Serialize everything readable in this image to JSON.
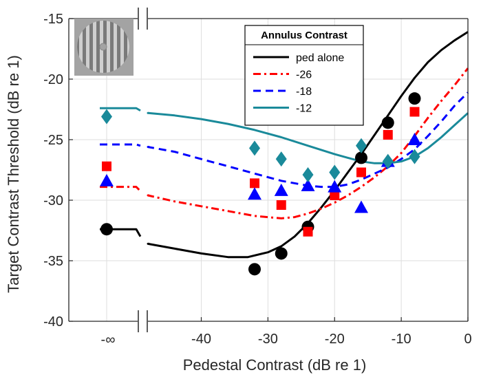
{
  "chart_data": {
    "type": "line",
    "xlabel": "Pedestal Contrast (dB re 1)",
    "ylabel": "Target Contrast Threshold (dB re 1)",
    "xlim": [
      -48,
      0
    ],
    "ylim": [
      -40,
      -15
    ],
    "x_ticks": [
      -40,
      -30,
      -20,
      -10,
      0
    ],
    "y_ticks": [
      -15,
      -20,
      -25,
      -30,
      -35,
      -40
    ],
    "neg_inf_label": "-∞",
    "grid": true,
    "legend": {
      "title": "Annulus Contrast",
      "placement": "top-right",
      "entries": [
        "ped alone",
        "-26",
        "-18",
        "-12"
      ]
    },
    "series": [
      {
        "name": "ped alone",
        "color": "#000000",
        "dash": "solid",
        "marker": "circle",
        "curve_inf": -32.4,
        "curve": [
          [
            -48,
            -33.6
          ],
          [
            -44,
            -34.0
          ],
          [
            -40,
            -34.4
          ],
          [
            -36,
            -34.7
          ],
          [
            -33,
            -34.7
          ],
          [
            -30,
            -34.3
          ],
          [
            -28,
            -33.8
          ],
          [
            -26,
            -33.0
          ],
          [
            -24,
            -31.9
          ],
          [
            -22,
            -30.6
          ],
          [
            -20,
            -29.2
          ],
          [
            -18,
            -27.7
          ],
          [
            -16,
            -26.2
          ],
          [
            -14,
            -24.6
          ],
          [
            -12,
            -23.0
          ],
          [
            -10,
            -21.4
          ],
          [
            -8,
            -19.9
          ],
          [
            -6,
            -18.6
          ],
          [
            -4,
            -17.6
          ],
          [
            -2,
            -16.8
          ],
          [
            0,
            -16.1
          ]
        ],
        "points_inf": [
          -32.4
        ],
        "points": [
          [
            -32,
            -35.7
          ],
          [
            -28,
            -34.4
          ],
          [
            -24,
            -32.2
          ],
          [
            -16,
            -26.5
          ],
          [
            -12,
            -23.6
          ],
          [
            -8,
            -21.6
          ]
        ]
      },
      {
        "name": "-26",
        "color": "#ff0000",
        "dash": "dashdot",
        "marker": "square",
        "curve_inf": -28.9,
        "curve": [
          [
            -48,
            -29.6
          ],
          [
            -44,
            -30.1
          ],
          [
            -40,
            -30.5
          ],
          [
            -36,
            -30.9
          ],
          [
            -32,
            -31.3
          ],
          [
            -28,
            -31.5
          ],
          [
            -26,
            -31.4
          ],
          [
            -24,
            -31.1
          ],
          [
            -22,
            -30.7
          ],
          [
            -20,
            -30.2
          ],
          [
            -18,
            -29.6
          ],
          [
            -16,
            -28.9
          ],
          [
            -14,
            -28.1
          ],
          [
            -12,
            -27.2
          ],
          [
            -10,
            -26.1
          ],
          [
            -8,
            -24.7
          ],
          [
            -6,
            -23.2
          ],
          [
            -4,
            -21.8
          ],
          [
            -2,
            -20.5
          ],
          [
            0,
            -19.1
          ]
        ],
        "points_inf": [
          -27.2
        ],
        "points": [
          [
            -32,
            -28.6
          ],
          [
            -28,
            -30.4
          ],
          [
            -24,
            -32.6
          ],
          [
            -20,
            -29.6
          ],
          [
            -16,
            -27.7
          ],
          [
            -12,
            -24.6
          ],
          [
            -8,
            -22.7
          ]
        ]
      },
      {
        "name": "-18",
        "color": "#0000ff",
        "dash": "dash",
        "marker": "triangle",
        "curve_inf": -25.4,
        "curve": [
          [
            -48,
            -25.6
          ],
          [
            -44,
            -26.0
          ],
          [
            -40,
            -26.6
          ],
          [
            -36,
            -27.2
          ],
          [
            -32,
            -27.8
          ],
          [
            -28,
            -28.4
          ],
          [
            -24,
            -28.8
          ],
          [
            -22,
            -28.9
          ],
          [
            -20,
            -28.9
          ],
          [
            -18,
            -28.7
          ],
          [
            -16,
            -28.3
          ],
          [
            -14,
            -27.8
          ],
          [
            -12,
            -27.3
          ],
          [
            -10,
            -26.6
          ],
          [
            -8,
            -25.8
          ],
          [
            -6,
            -24.7
          ],
          [
            -4,
            -23.5
          ],
          [
            -2,
            -22.2
          ],
          [
            0,
            -21.1
          ]
        ],
        "points_inf": [
          -28.4
        ],
        "points": [
          [
            -32,
            -29.5
          ],
          [
            -28,
            -29.2
          ],
          [
            -24,
            -28.8
          ],
          [
            -20,
            -28.9
          ],
          [
            -16,
            -30.6
          ],
          [
            -12,
            -26.8
          ],
          [
            -8,
            -25.0
          ]
        ]
      },
      {
        "name": "-12",
        "color": "#1a8a9a",
        "dash": "solid",
        "marker": "diamond",
        "curve_inf": -22.4,
        "curve": [
          [
            -48,
            -22.8
          ],
          [
            -44,
            -23.0
          ],
          [
            -40,
            -23.3
          ],
          [
            -36,
            -23.7
          ],
          [
            -32,
            -24.2
          ],
          [
            -28,
            -24.8
          ],
          [
            -24,
            -25.5
          ],
          [
            -20,
            -26.2
          ],
          [
            -18,
            -26.5
          ],
          [
            -16,
            -26.8
          ],
          [
            -14,
            -26.95
          ],
          [
            -12,
            -26.95
          ],
          [
            -10,
            -26.8
          ],
          [
            -8,
            -26.4
          ],
          [
            -6,
            -25.7
          ],
          [
            -4,
            -24.8
          ],
          [
            -2,
            -23.8
          ],
          [
            0,
            -22.8
          ]
        ],
        "points_inf": [
          -23.1
        ],
        "points": [
          [
            -32,
            -25.7
          ],
          [
            -28,
            -26.6
          ],
          [
            -24,
            -27.9
          ],
          [
            -20,
            -27.7
          ],
          [
            -16,
            -25.5
          ],
          [
            -12,
            -26.8
          ],
          [
            -8,
            -26.4
          ]
        ]
      }
    ]
  }
}
